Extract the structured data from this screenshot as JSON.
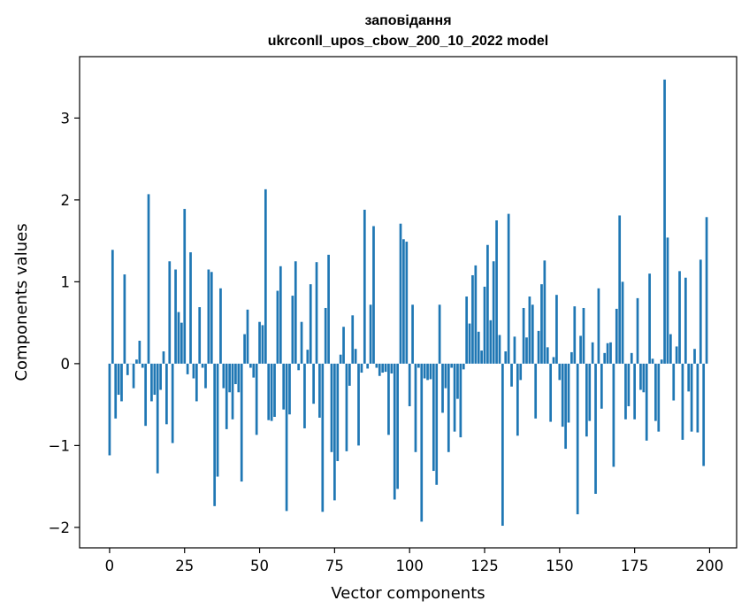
{
  "chart_data": {
    "type": "bar",
    "title": "заповідання",
    "subtitle": "ukrconll_upos_cbow_200_10_2022 model",
    "xlabel": "Vector components",
    "ylabel": "Components values",
    "xlim": [
      -10,
      209
    ],
    "ylim": [
      -2.25,
      3.75
    ],
    "xticks": [
      0,
      25,
      50,
      75,
      100,
      125,
      150,
      175,
      200
    ],
    "yticks": [
      -2,
      -1,
      0,
      1,
      2,
      3
    ],
    "xtick_labels": [
      "0",
      "25",
      "50",
      "75",
      "100",
      "125",
      "150",
      "175",
      "200"
    ],
    "ytick_labels": [
      "−2",
      "−1",
      "0",
      "1",
      "2",
      "3"
    ],
    "grid": false,
    "legend": "none",
    "bar_color": "#1f77b4",
    "values": [
      -1.12,
      1.39,
      -0.67,
      -0.38,
      -0.46,
      1.09,
      -0.14,
      0.0,
      -0.3,
      0.05,
      0.28,
      -0.05,
      -0.76,
      2.07,
      -0.46,
      -0.38,
      -1.34,
      -0.32,
      0.15,
      -0.74,
      1.25,
      -0.97,
      1.15,
      0.63,
      0.5,
      1.89,
      -0.13,
      1.36,
      -0.18,
      -0.46,
      0.69,
      -0.05,
      -0.3,
      1.15,
      1.12,
      -1.74,
      -1.38,
      0.92,
      -0.3,
      -0.8,
      -0.35,
      -0.68,
      -0.25,
      -0.35,
      -1.44,
      0.36,
      0.66,
      -0.05,
      -0.17,
      -0.87,
      0.51,
      0.47,
      2.13,
      -0.69,
      -0.7,
      -0.65,
      0.89,
      1.19,
      -0.56,
      -1.8,
      -0.62,
      0.83,
      1.25,
      -0.08,
      0.51,
      -0.79,
      0.17,
      0.97,
      -0.49,
      1.24,
      -0.66,
      -1.81,
      0.68,
      1.33,
      -1.08,
      -1.67,
      -1.19,
      0.11,
      0.45,
      -1.07,
      -0.27,
      0.59,
      0.18,
      -1.0,
      -0.11,
      1.88,
      -0.06,
      0.72,
      1.68,
      -0.05,
      -0.15,
      -0.11,
      -0.1,
      -0.87,
      -0.12,
      -1.66,
      -1.53,
      1.71,
      1.52,
      1.49,
      -0.52,
      0.72,
      -1.08,
      -0.05,
      -1.93,
      -0.18,
      -0.2,
      -0.19,
      -1.31,
      -1.48,
      0.72,
      -0.6,
      -0.3,
      -1.08,
      -0.05,
      -0.83,
      -0.43,
      -0.9,
      -0.07,
      0.82,
      0.49,
      1.08,
      1.2,
      0.39,
      0.16,
      0.94,
      1.45,
      0.53,
      1.25,
      1.75,
      0.35,
      -1.98,
      0.15,
      1.83,
      -0.28,
      0.33,
      -0.88,
      -0.2,
      0.68,
      0.32,
      0.82,
      0.72,
      -0.67,
      0.4,
      0.97,
      1.26,
      0.2,
      -0.71,
      0.08,
      0.84,
      -0.2,
      -0.77,
      -1.04,
      -0.72,
      0.14,
      0.7,
      -1.84,
      0.34,
      0.68,
      -0.89,
      -0.7,
      0.26,
      -1.59,
      0.92,
      -0.55,
      0.13,
      0.25,
      0.26,
      -1.26,
      0.67,
      1.81,
      1.0,
      -0.68,
      -0.52,
      0.13,
      -0.68,
      0.8,
      -0.32,
      -0.35,
      -0.94,
      1.1,
      0.06,
      -0.7,
      -0.83,
      0.05,
      3.47,
      1.54,
      0.36,
      -0.45,
      0.21,
      1.13,
      -0.93,
      1.05,
      -0.34,
      -0.83,
      0.18,
      -0.84,
      1.27,
      -1.25,
      1.79
    ]
  }
}
